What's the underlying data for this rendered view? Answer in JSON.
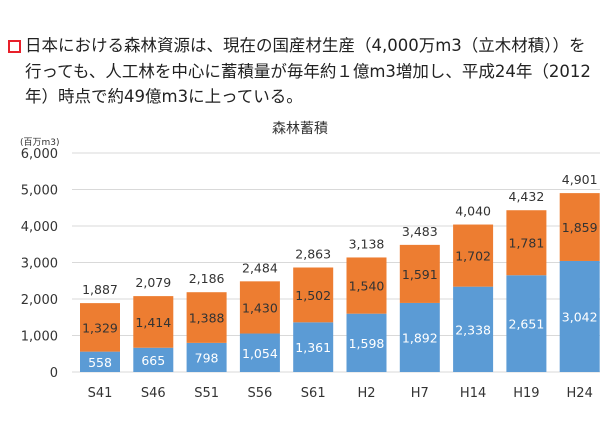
{
  "description": "日本における森林資源は、現在の国産材生産（4,000万m3（立木材積））を行っても、人工林を中心に蓄積量が毎年約１億m3増加し、平成24年（2012年）時点で約49億m3に上っている。",
  "chart_data": {
    "type": "bar",
    "stacked": true,
    "title": "森林蓄積",
    "ylabel": "(百万m3)",
    "ylim": [
      0,
      6000
    ],
    "yticks": [
      "0",
      "1,000",
      "2,000",
      "3,000",
      "4,000",
      "5,000",
      "6,000"
    ],
    "grid": true,
    "categories": [
      "S41",
      "S46",
      "S51",
      "S56",
      "S61",
      "H2",
      "H7",
      "H14",
      "H19",
      "H24"
    ],
    "series": [
      {
        "values": [
          558,
          665,
          798,
          1054,
          1361,
          1598,
          1892,
          2338,
          2651,
          3042
        ],
        "color": "#5b9bd5"
      },
      {
        "values": [
          1329,
          1414,
          1388,
          1430,
          1502,
          1540,
          1591,
          1702,
          1781,
          1859
        ],
        "color": "#ed7d31"
      }
    ],
    "totals": [
      1887,
      2079,
      2186,
      2484,
      2863,
      3138,
      3483,
      4040,
      4432,
      4901
    ]
  }
}
